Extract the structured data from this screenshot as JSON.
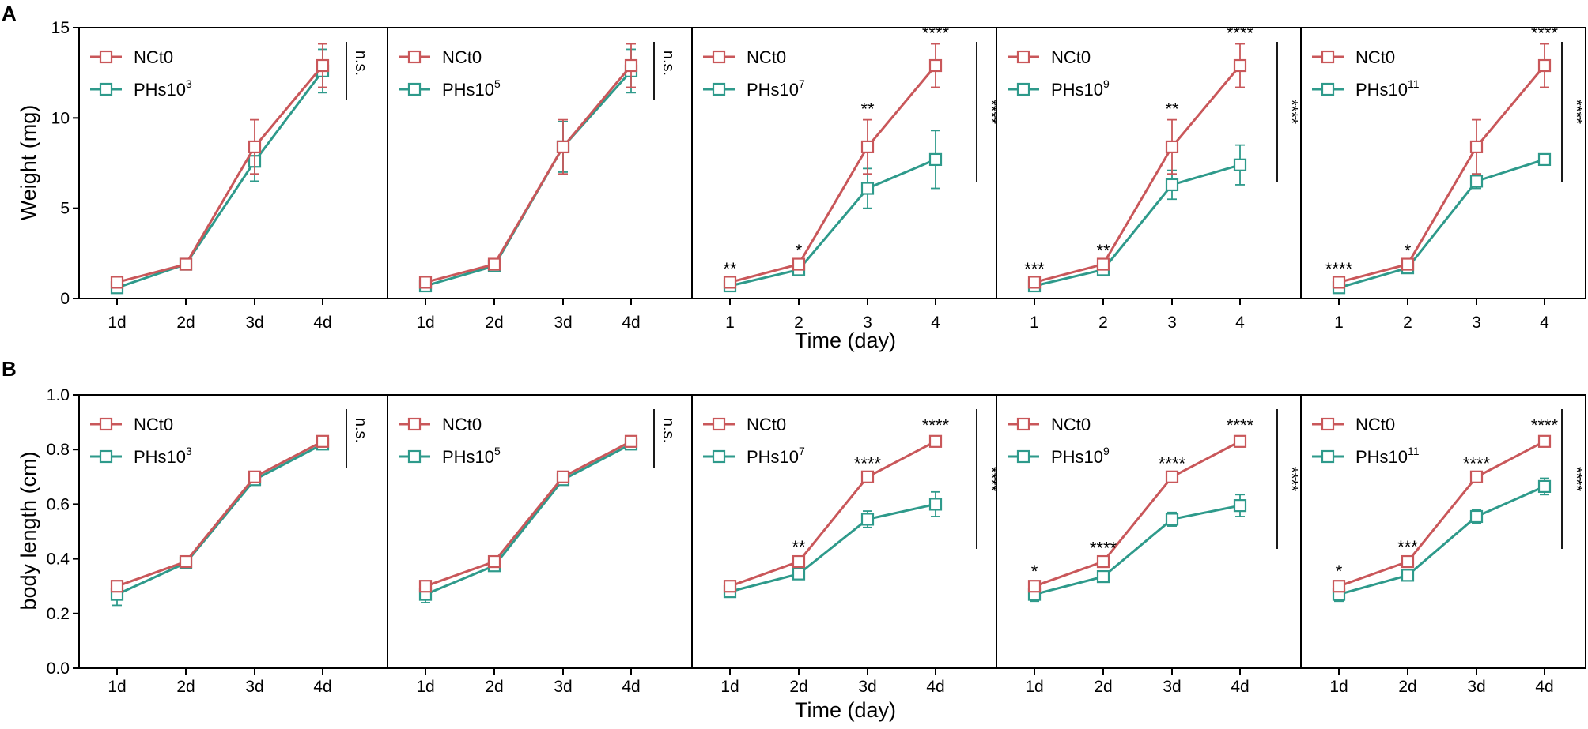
{
  "colors": {
    "NCt0": "#C9575A",
    "PHs": "#2E9A8B",
    "axis": "#000000"
  },
  "chart_data": [
    {
      "type": "line",
      "panel_label": "A",
      "ylabel": "Weight (mg)",
      "xlabel": "Time (day)",
      "ylim": [
        0,
        15
      ],
      "yticks": [
        "0",
        "5",
        "10",
        "15"
      ],
      "subplots": [
        {
          "categories": [
            "1d",
            "2d",
            "3d",
            "4d"
          ],
          "series": [
            {
              "name": "NCt0",
              "legend": "NCt0",
              "values": [
                0.9,
                1.9,
                8.4,
                12.9
              ],
              "errors": [
                0.15,
                0.15,
                1.5,
                1.2
              ]
            },
            {
              "name": "PHs10^3",
              "legend": "PHs10",
              "sup": "3",
              "values": [
                0.6,
                1.9,
                7.6,
                12.6
              ],
              "errors": [
                0.1,
                0.1,
                1.1,
                1.2
              ]
            }
          ],
          "point_sig": [
            "",
            "",
            "",
            ""
          ],
          "overall_sig": "n.s."
        },
        {
          "categories": [
            "1d",
            "2d",
            "3d",
            "4d"
          ],
          "series": [
            {
              "name": "NCt0",
              "legend": "NCt0",
              "values": [
                0.9,
                1.9,
                8.4,
                12.9
              ],
              "errors": [
                0.15,
                0.15,
                1.5,
                1.2
              ]
            },
            {
              "name": "PHs10^5",
              "legend": "PHs10",
              "sup": "5",
              "values": [
                0.7,
                1.8,
                8.4,
                12.6
              ],
              "errors": [
                0.1,
                0.1,
                1.4,
                1.2
              ]
            }
          ],
          "point_sig": [
            "",
            "",
            "",
            ""
          ],
          "overall_sig": "n.s."
        },
        {
          "categories": [
            "1",
            "2",
            "3",
            "4"
          ],
          "series": [
            {
              "name": "NCt0",
              "legend": "NCt0",
              "values": [
                0.9,
                1.9,
                8.4,
                12.9
              ],
              "errors": [
                0.15,
                0.15,
                1.5,
                1.2
              ]
            },
            {
              "name": "PHs10^7",
              "legend": "PHs10",
              "sup": "7",
              "values": [
                0.7,
                1.6,
                6.1,
                7.7
              ],
              "errors": [
                0.1,
                0.1,
                1.1,
                1.6
              ]
            }
          ],
          "point_sig": [
            "**",
            "*",
            "**",
            "****"
          ],
          "overall_sig": "****"
        },
        {
          "categories": [
            "1",
            "2",
            "3",
            "4"
          ],
          "series": [
            {
              "name": "NCt0",
              "legend": "NCt0",
              "values": [
                0.9,
                1.9,
                8.4,
                12.9
              ],
              "errors": [
                0.15,
                0.15,
                1.5,
                1.2
              ]
            },
            {
              "name": "PHs10^9",
              "legend": "PHs10",
              "sup": "9",
              "values": [
                0.7,
                1.6,
                6.3,
                7.4
              ],
              "errors": [
                0.1,
                0.1,
                0.8,
                1.1
              ]
            }
          ],
          "point_sig": [
            "***",
            "**",
            "**",
            "****"
          ],
          "overall_sig": "****"
        },
        {
          "categories": [
            "1",
            "2",
            "3",
            "4"
          ],
          "series": [
            {
              "name": "NCt0",
              "legend": "NCt0",
              "values": [
                0.9,
                1.9,
                8.4,
                12.9
              ],
              "errors": [
                0.15,
                0.15,
                1.5,
                1.2
              ]
            },
            {
              "name": "PHs10^11",
              "legend": "PHs10",
              "sup": "11",
              "values": [
                0.6,
                1.7,
                6.5,
                7.7
              ],
              "errors": [
                0.1,
                0.1,
                0.4,
                0.2
              ]
            }
          ],
          "point_sig": [
            "****",
            "*",
            "",
            "****"
          ],
          "overall_sig": "****"
        }
      ]
    },
    {
      "type": "line",
      "panel_label": "B",
      "ylabel": "body length (cm)",
      "xlabel": "Time (day)",
      "ylim": [
        0,
        1.0
      ],
      "yticks": [
        "0.0",
        "0.2",
        "0.4",
        "0.6",
        "0.8",
        "1.0"
      ],
      "subplots": [
        {
          "categories": [
            "1d",
            "2d",
            "3d",
            "4d"
          ],
          "series": [
            {
              "name": "NCt0",
              "legend": "NCt0",
              "values": [
                0.3,
                0.39,
                0.7,
                0.83
              ],
              "errors": [
                0.015,
                0.01,
                0.015,
                0.02
              ]
            },
            {
              "name": "PHs10^3",
              "legend": "PHs10",
              "sup": "3",
              "values": [
                0.27,
                0.385,
                0.69,
                0.82
              ],
              "errors": [
                0.04,
                0.015,
                0.02,
                0.02
              ]
            }
          ],
          "point_sig": [
            "",
            "",
            "",
            ""
          ],
          "overall_sig": "n.s."
        },
        {
          "categories": [
            "1d",
            "2d",
            "3d",
            "4d"
          ],
          "series": [
            {
              "name": "NCt0",
              "legend": "NCt0",
              "values": [
                0.3,
                0.39,
                0.7,
                0.83
              ],
              "errors": [
                0.015,
                0.015,
                0.015,
                0.02
              ]
            },
            {
              "name": "PHs10^5",
              "legend": "PHs10",
              "sup": "5",
              "values": [
                0.27,
                0.375,
                0.69,
                0.82
              ],
              "errors": [
                0.03,
                0.02,
                0.015,
                0.02
              ]
            }
          ],
          "point_sig": [
            "",
            "",
            "",
            ""
          ],
          "overall_sig": "n.s."
        },
        {
          "categories": [
            "1d",
            "2d",
            "3d",
            "4d"
          ],
          "series": [
            {
              "name": "NCt0",
              "legend": "NCt0",
              "values": [
                0.3,
                0.39,
                0.7,
                0.83
              ],
              "errors": [
                0.015,
                0.015,
                0.01,
                0.02
              ]
            },
            {
              "name": "PHs10^7",
              "legend": "PHs10",
              "sup": "7",
              "values": [
                0.28,
                0.345,
                0.545,
                0.6
              ],
              "errors": [
                0.02,
                0.02,
                0.03,
                0.045
              ]
            }
          ],
          "point_sig": [
            "",
            "**",
            "****",
            "****"
          ],
          "overall_sig": "****"
        },
        {
          "categories": [
            "1d",
            "2d",
            "3d",
            "4d"
          ],
          "series": [
            {
              "name": "NCt0",
              "legend": "NCt0",
              "values": [
                0.3,
                0.39,
                0.7,
                0.83
              ],
              "errors": [
                0.015,
                0.01,
                0.01,
                0.02
              ]
            },
            {
              "name": "PHs10^9",
              "legend": "PHs10",
              "sup": "9",
              "values": [
                0.27,
                0.335,
                0.545,
                0.595
              ],
              "errors": [
                0.025,
                0.02,
                0.025,
                0.04
              ]
            }
          ],
          "point_sig": [
            "*",
            "****",
            "****",
            "****"
          ],
          "overall_sig": "****"
        },
        {
          "categories": [
            "1d",
            "2d",
            "3d",
            "4d"
          ],
          "series": [
            {
              "name": "NCt0",
              "legend": "NCt0",
              "values": [
                0.3,
                0.39,
                0.7,
                0.83
              ],
              "errors": [
                0.015,
                0.015,
                0.01,
                0.02
              ]
            },
            {
              "name": "PHs10^11",
              "legend": "PHs10",
              "sup": "11",
              "values": [
                0.27,
                0.34,
                0.555,
                0.665
              ],
              "errors": [
                0.025,
                0.02,
                0.025,
                0.03
              ]
            }
          ],
          "point_sig": [
            "*",
            "***",
            "****",
            "****"
          ],
          "overall_sig": "****"
        }
      ]
    }
  ]
}
